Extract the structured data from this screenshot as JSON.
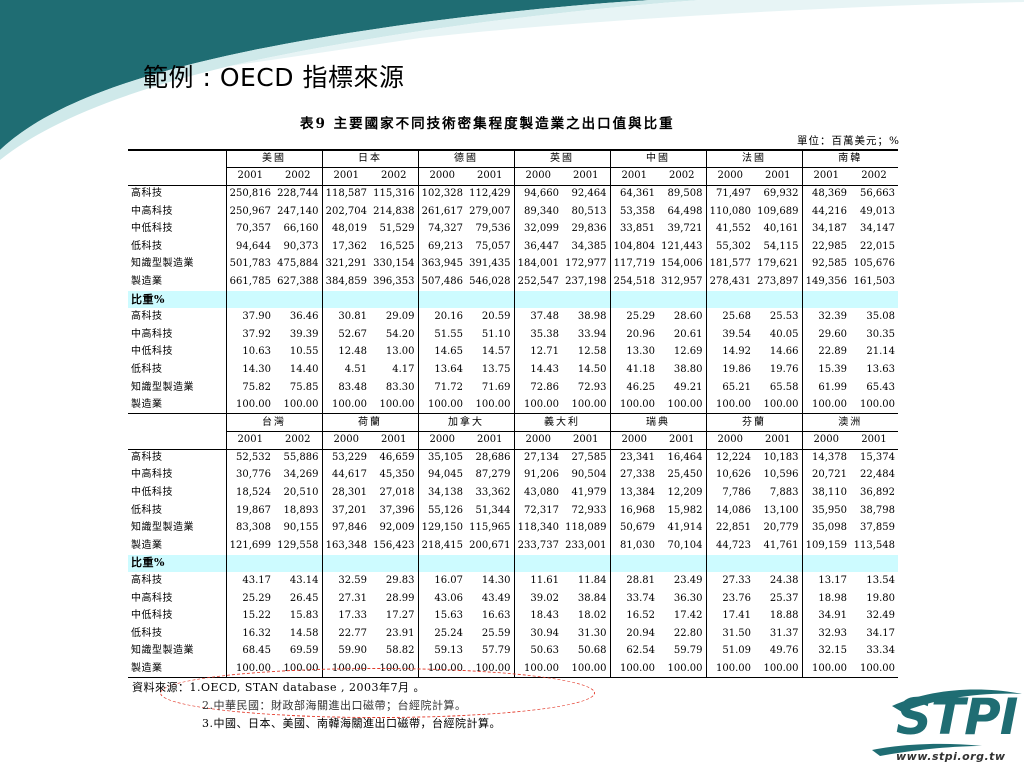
{
  "slide": {
    "title": "範例 : OECD 指標來源"
  },
  "table": {
    "caption": "表9 主要國家不同技術密集程度製造業之出口值與比重",
    "unit": "單位：百萬美元；%",
    "share_header": "比重%",
    "group1": {
      "countries": [
        "美國",
        "日本",
        "德國",
        "英國",
        "中國",
        "法國",
        "南韓"
      ],
      "years": [
        [
          "2001",
          "2002"
        ],
        [
          "2001",
          "2002"
        ],
        [
          "2000",
          "2001"
        ],
        [
          "2000",
          "2001"
        ],
        [
          "2001",
          "2002"
        ],
        [
          "2000",
          "2001"
        ],
        [
          "2001",
          "2002"
        ]
      ],
      "value_rows": [
        {
          "label": "高科技",
          "values": [
            "250,816",
            "228,744",
            "118,587",
            "115,316",
            "102,328",
            "112,429",
            "94,660",
            "92,464",
            "64,361",
            "89,508",
            "71,497",
            "69,932",
            "48,369",
            "56,663"
          ]
        },
        {
          "label": "中高科技",
          "values": [
            "250,967",
            "247,140",
            "202,704",
            "214,838",
            "261,617",
            "279,007",
            "89,340",
            "80,513",
            "53,358",
            "64,498",
            "110,080",
            "109,689",
            "44,216",
            "49,013"
          ]
        },
        {
          "label": "中低科技",
          "values": [
            "70,357",
            "66,160",
            "48,019",
            "51,529",
            "74,327",
            "79,536",
            "32,099",
            "29,836",
            "33,851",
            "39,721",
            "41,552",
            "40,161",
            "34,187",
            "34,147"
          ]
        },
        {
          "label": "低科技",
          "values": [
            "94,644",
            "90,373",
            "17,362",
            "16,525",
            "69,213",
            "75,057",
            "36,447",
            "34,385",
            "104,804",
            "121,443",
            "55,302",
            "54,115",
            "22,985",
            "22,015"
          ]
        },
        {
          "label": "知識型製造業",
          "values": [
            "501,783",
            "475,884",
            "321,291",
            "330,154",
            "363,945",
            "391,435",
            "184,001",
            "172,977",
            "117,719",
            "154,006",
            "181,577",
            "179,621",
            "92,585",
            "105,676"
          ]
        },
        {
          "label": "製造業",
          "values": [
            "661,785",
            "627,388",
            "384,859",
            "396,353",
            "507,486",
            "546,028",
            "252,547",
            "237,198",
            "254,518",
            "312,957",
            "278,431",
            "273,897",
            "149,356",
            "161,503"
          ]
        }
      ],
      "share_rows": [
        {
          "label": "高科技",
          "values": [
            "37.90",
            "36.46",
            "30.81",
            "29.09",
            "20.16",
            "20.59",
            "37.48",
            "38.98",
            "25.29",
            "28.60",
            "25.68",
            "25.53",
            "32.39",
            "35.08"
          ]
        },
        {
          "label": "中高科技",
          "values": [
            "37.92",
            "39.39",
            "52.67",
            "54.20",
            "51.55",
            "51.10",
            "35.38",
            "33.94",
            "20.96",
            "20.61",
            "39.54",
            "40.05",
            "29.60",
            "30.35"
          ]
        },
        {
          "label": "中低科技",
          "values": [
            "10.63",
            "10.55",
            "12.48",
            "13.00",
            "14.65",
            "14.57",
            "12.71",
            "12.58",
            "13.30",
            "12.69",
            "14.92",
            "14.66",
            "22.89",
            "21.14"
          ]
        },
        {
          "label": "低科技",
          "values": [
            "14.30",
            "14.40",
            "4.51",
            "4.17",
            "13.64",
            "13.75",
            "14.43",
            "14.50",
            "41.18",
            "38.80",
            "19.86",
            "19.76",
            "15.39",
            "13.63"
          ]
        },
        {
          "label": "知識型製造業",
          "values": [
            "75.82",
            "75.85",
            "83.48",
            "83.30",
            "71.72",
            "71.69",
            "72.86",
            "72.93",
            "46.25",
            "49.21",
            "65.21",
            "65.58",
            "61.99",
            "65.43"
          ]
        },
        {
          "label": "製造業",
          "values": [
            "100.00",
            "100.00",
            "100.00",
            "100.00",
            "100.00",
            "100.00",
            "100.00",
            "100.00",
            "100.00",
            "100.00",
            "100.00",
            "100.00",
            "100.00",
            "100.00"
          ]
        }
      ]
    },
    "group2": {
      "countries": [
        "台灣",
        "荷蘭",
        "加拿大",
        "義大利",
        "瑞典",
        "芬蘭",
        "澳洲"
      ],
      "years": [
        [
          "2001",
          "2002"
        ],
        [
          "2000",
          "2001"
        ],
        [
          "2000",
          "2001"
        ],
        [
          "2000",
          "2001"
        ],
        [
          "2000",
          "2001"
        ],
        [
          "2000",
          "2001"
        ],
        [
          "2000",
          "2001"
        ]
      ],
      "value_rows": [
        {
          "label": "高科技",
          "values": [
            "52,532",
            "55,886",
            "53,229",
            "46,659",
            "35,105",
            "28,686",
            "27,134",
            "27,585",
            "23,341",
            "16,464",
            "12,224",
            "10,183",
            "14,378",
            "15,374"
          ]
        },
        {
          "label": "中高科技",
          "values": [
            "30,776",
            "34,269",
            "44,617",
            "45,350",
            "94,045",
            "87,279",
            "91,206",
            "90,504",
            "27,338",
            "25,450",
            "10,626",
            "10,596",
            "20,721",
            "22,484"
          ]
        },
        {
          "label": "中低科技",
          "values": [
            "18,524",
            "20,510",
            "28,301",
            "27,018",
            "34,138",
            "33,362",
            "43,080",
            "41,979",
            "13,384",
            "12,209",
            "7,786",
            "7,883",
            "38,110",
            "36,892"
          ]
        },
        {
          "label": "低科技",
          "values": [
            "19,867",
            "18,893",
            "37,201",
            "37,396",
            "55,126",
            "51,344",
            "72,317",
            "72,933",
            "16,968",
            "15,982",
            "14,086",
            "13,100",
            "35,950",
            "38,798"
          ]
        },
        {
          "label": "知識型製造業",
          "values": [
            "83,308",
            "90,155",
            "97,846",
            "92,009",
            "129,150",
            "115,965",
            "118,340",
            "118,089",
            "50,679",
            "41,914",
            "22,851",
            "20,779",
            "35,098",
            "37,859"
          ]
        },
        {
          "label": "製造業",
          "values": [
            "121,699",
            "129,558",
            "163,348",
            "156,423",
            "218,415",
            "200,671",
            "233,737",
            "233,001",
            "81,030",
            "70,104",
            "44,723",
            "41,761",
            "109,159",
            "113,548"
          ]
        }
      ],
      "share_rows": [
        {
          "label": "高科技",
          "values": [
            "43.17",
            "43.14",
            "32.59",
            "29.83",
            "16.07",
            "14.30",
            "11.61",
            "11.84",
            "28.81",
            "23.49",
            "27.33",
            "24.38",
            "13.17",
            "13.54"
          ]
        },
        {
          "label": "中高科技",
          "values": [
            "25.29",
            "26.45",
            "27.31",
            "28.99",
            "43.06",
            "43.49",
            "39.02",
            "38.84",
            "33.74",
            "36.30",
            "23.76",
            "25.37",
            "18.98",
            "19.80"
          ]
        },
        {
          "label": "中低科技",
          "values": [
            "15.22",
            "15.83",
            "17.33",
            "17.27",
            "15.63",
            "16.63",
            "18.43",
            "18.02",
            "16.52",
            "17.42",
            "17.41",
            "18.88",
            "34.91",
            "32.49"
          ]
        },
        {
          "label": "低科技",
          "values": [
            "16.32",
            "14.58",
            "22.77",
            "23.91",
            "25.24",
            "25.59",
            "30.94",
            "31.30",
            "20.94",
            "22.80",
            "31.50",
            "31.37",
            "32.93",
            "34.17"
          ]
        },
        {
          "label": "知識型製造業",
          "values": [
            "68.45",
            "69.59",
            "59.90",
            "58.82",
            "59.13",
            "57.79",
            "50.63",
            "50.68",
            "62.54",
            "59.79",
            "51.09",
            "49.76",
            "32.15",
            "33.34"
          ]
        },
        {
          "label": "製造業",
          "values": [
            "100.00",
            "100.00",
            "100.00",
            "100.00",
            "100.00",
            "100.00",
            "100.00",
            "100.00",
            "100.00",
            "100.00",
            "100.00",
            "100.00",
            "100.00",
            "100.00"
          ]
        }
      ]
    }
  },
  "source": {
    "line1": "資料來源：1.OECD, STAN database , 2003年7月 。",
    "line2": "2.中華民國：財政部海關進出口磁帶；台經院計算。",
    "line3": "3.中國、日本、美國、南韓海關進出口磁帶，台經院計算。"
  },
  "logo": {
    "text": "STPI",
    "url": "www.stpi.org.tw"
  },
  "colors": {
    "deco_teal": "#1f6d73",
    "deco_light": "#cfe9ea",
    "share_band": "#cdfbff",
    "oval": "#e33a2a"
  }
}
